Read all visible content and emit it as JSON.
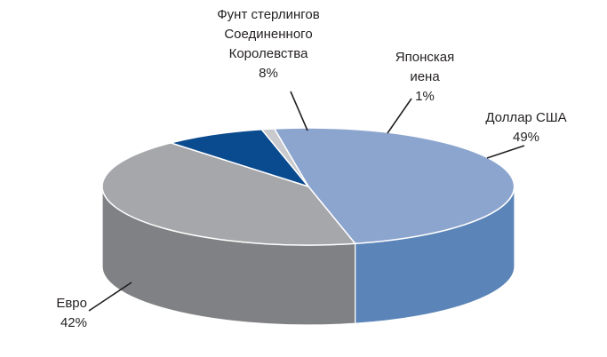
{
  "chart_data": {
    "type": "pie",
    "style": "3d",
    "slices": [
      {
        "lines": [
          "Доллар США"
        ],
        "pct": "49%",
        "value": 49,
        "color": "#8ca5cf",
        "side_color": "#5b84b8"
      },
      {
        "lines": [
          "Евро"
        ],
        "pct": "42%",
        "value": 42,
        "color": "#a6a7aa",
        "side_color": "#808184"
      },
      {
        "lines": [
          "Фунт стерлингов",
          "Соединенного",
          "Королевства"
        ],
        "pct": "8%",
        "value": 8,
        "color": "#0a4b8f",
        "side_color": "#08386b"
      },
      {
        "lines": [
          "Японская",
          "иена"
        ],
        "pct": "1%",
        "value": 1,
        "color": "#c8cace",
        "side_color": "#a0a2a6"
      }
    ]
  }
}
